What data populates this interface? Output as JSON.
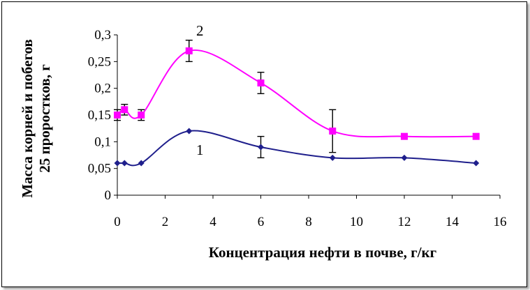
{
  "chart_data": {
    "type": "line",
    "xlabel": "Концентрация нефти в почве,  г/кг",
    "ylabel_line1": "Масса корней и побегов",
    "ylabel_line2": "25 проростков,  г",
    "xlim": [
      0,
      16
    ],
    "ylim": [
      0,
      0.3
    ],
    "x_ticks": [
      0,
      2,
      4,
      6,
      8,
      10,
      12,
      14,
      16
    ],
    "x_tick_labels": [
      "0",
      "2",
      "4",
      "6",
      "8",
      "10",
      "12",
      "14",
      "16"
    ],
    "y_ticks": [
      0,
      0.05,
      0.1,
      0.15,
      0.2,
      0.25,
      0.3
    ],
    "y_tick_labels": [
      "0",
      "0,05",
      "0,1",
      "0,15",
      "0,2",
      "0,25",
      "0,3"
    ],
    "grid": false,
    "series": [
      {
        "name": "1",
        "color": "#1f1f8c",
        "marker": "diamond",
        "x": [
          0,
          0.3,
          1,
          3,
          6,
          9,
          12,
          15
        ],
        "y": [
          0.06,
          0.06,
          0.06,
          0.12,
          0.09,
          0.07,
          0.07,
          0.06
        ],
        "err": [
          0,
          0,
          0,
          0,
          0.02,
          0,
          0,
          0
        ]
      },
      {
        "name": "2",
        "color": "#ff00ff",
        "marker": "square",
        "x": [
          0,
          0.3,
          1,
          3,
          6,
          9,
          12,
          15
        ],
        "y": [
          0.15,
          0.16,
          0.15,
          0.27,
          0.21,
          0.12,
          0.11,
          0.11
        ],
        "err": [
          0.01,
          0.01,
          0.01,
          0.02,
          0.02,
          0.04,
          0,
          0
        ]
      }
    ]
  }
}
